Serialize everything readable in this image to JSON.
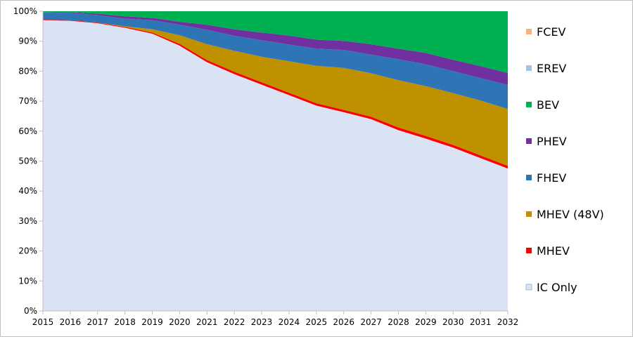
{
  "chart_data": {
    "type": "area",
    "stacked_percent": true,
    "x": [
      "2015",
      "2016",
      "2017",
      "2018",
      "2019",
      "2020",
      "2021",
      "2022",
      "2023",
      "2024",
      "2025",
      "2026",
      "2027",
      "2028",
      "2029",
      "2030",
      "2031",
      "2032"
    ],
    "y_ticks": [
      "0%",
      "10%",
      "20%",
      "30%",
      "40%",
      "50%",
      "60%",
      "70%",
      "80%",
      "90%",
      "100%"
    ],
    "ylim": [
      0,
      100
    ],
    "grid": false,
    "legend_position": "right",
    "series": [
      {
        "name": "IC Only",
        "color": "#dae3f3",
        "values": [
          97,
          96.8,
          96,
          94.5,
          92.5,
          88.5,
          83,
          79,
          75.5,
          72,
          68.5,
          66.3,
          64,
          60.3,
          57.5,
          54.5,
          51,
          47.5
        ]
      },
      {
        "name": "MHEV",
        "color": "#ff0000",
        "values": [
          0.2,
          0.2,
          0.2,
          0.3,
          0.4,
          0.6,
          0.7,
          0.8,
          0.8,
          0.8,
          0.8,
          0.8,
          0.8,
          0.9,
          0.9,
          0.9,
          0.9,
          0.9
        ]
      },
      {
        "name": "MHEV (48V)",
        "color": "#bf9000",
        "values": [
          0,
          0,
          0,
          0.2,
          1.1,
          2.9,
          5.3,
          7,
          8.5,
          10.5,
          12.5,
          14,
          14.5,
          15.8,
          16.6,
          17.3,
          18.3,
          19
        ]
      },
      {
        "name": "FHEV",
        "color": "#2e75b6",
        "values": [
          2.3,
          2.5,
          2.5,
          2.5,
          3,
          3.5,
          4.8,
          5,
          5.5,
          5.6,
          5.7,
          6,
          6.2,
          7,
          7.3,
          7.3,
          7.5,
          8
        ]
      },
      {
        "name": "PHEV",
        "color": "#7030a0",
        "values": [
          0.1,
          0.2,
          0.5,
          0.8,
          0.8,
          1,
          1.7,
          2.2,
          2.6,
          3,
          3,
          3,
          3.5,
          3.5,
          3.8,
          3.8,
          4,
          4
        ]
      },
      {
        "name": "BEV",
        "color": "#00b050",
        "values": [
          0.4,
          0.3,
          0.8,
          1.7,
          2.2,
          3.5,
          4.5,
          6,
          7.1,
          8.1,
          9.5,
          9.9,
          11,
          12.5,
          13.9,
          16.2,
          18.3,
          20.6
        ]
      },
      {
        "name": "EREV",
        "color": "#9dc3e6",
        "values": [
          0,
          0,
          0,
          0,
          0,
          0,
          0,
          0,
          0,
          0,
          0,
          0,
          0,
          0,
          0,
          0,
          0,
          0
        ]
      },
      {
        "name": "FCEV",
        "color": "#f4b183",
        "values": [
          0,
          0,
          0,
          0,
          0,
          0,
          0,
          0,
          0,
          0,
          0,
          0,
          0,
          0,
          0,
          0,
          0,
          0
        ]
      }
    ],
    "legend_order": [
      "FCEV",
      "EREV",
      "BEV",
      "PHEV",
      "FHEV",
      "MHEV (48V)",
      "MHEV",
      "IC Only"
    ]
  }
}
